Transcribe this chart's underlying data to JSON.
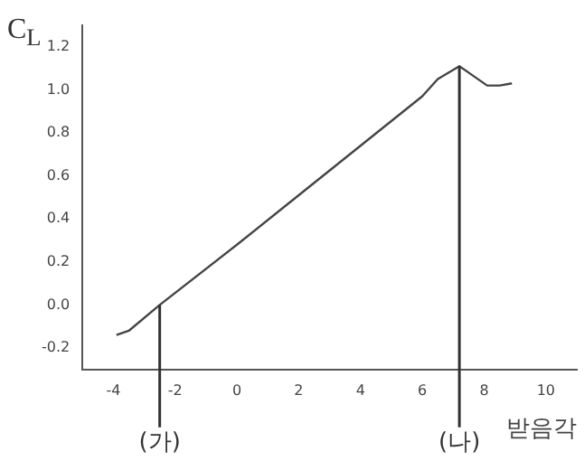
{
  "chart_data": {
    "type": "line",
    "xlabel": "받음각",
    "ylabel": "C$_{L}$",
    "x": [
      -3.9,
      -3.5,
      -2.5,
      0,
      2,
      4,
      6,
      6.5,
      7.2,
      7.7,
      8.1,
      8.5,
      8.9
    ],
    "series": [
      {
        "color": "#444444",
        "values": [
          -0.14,
          -0.12,
          0,
          0.28,
          0.51,
          0.74,
          0.97,
          1.05,
          1.11,
          1.06,
          1.02,
          1.02,
          1.03
        ]
      }
    ],
    "xlim": [
      -5,
      11
    ],
    "xticks": [
      -4,
      -2,
      0,
      2,
      4,
      6,
      8,
      10
    ],
    "ylim": [
      -0.3,
      1.3
    ],
    "yticks": [
      -0.2,
      {
        "value": 0,
        "label": "0.0"
      },
      0.2,
      0.4,
      0.6,
      0.8,
      {
        "value": 1,
        "label": "1.0"
      },
      1.2
    ],
    "ref_lines": [
      {
        "axis": "x",
        "value": -2.5,
        "label": "(가)"
      },
      {
        "axis": "x",
        "value": 7.2,
        "label": "(나)"
      }
    ],
    "grid": false,
    "legend": false,
    "marker": "none",
    "line_style": "solid"
  }
}
